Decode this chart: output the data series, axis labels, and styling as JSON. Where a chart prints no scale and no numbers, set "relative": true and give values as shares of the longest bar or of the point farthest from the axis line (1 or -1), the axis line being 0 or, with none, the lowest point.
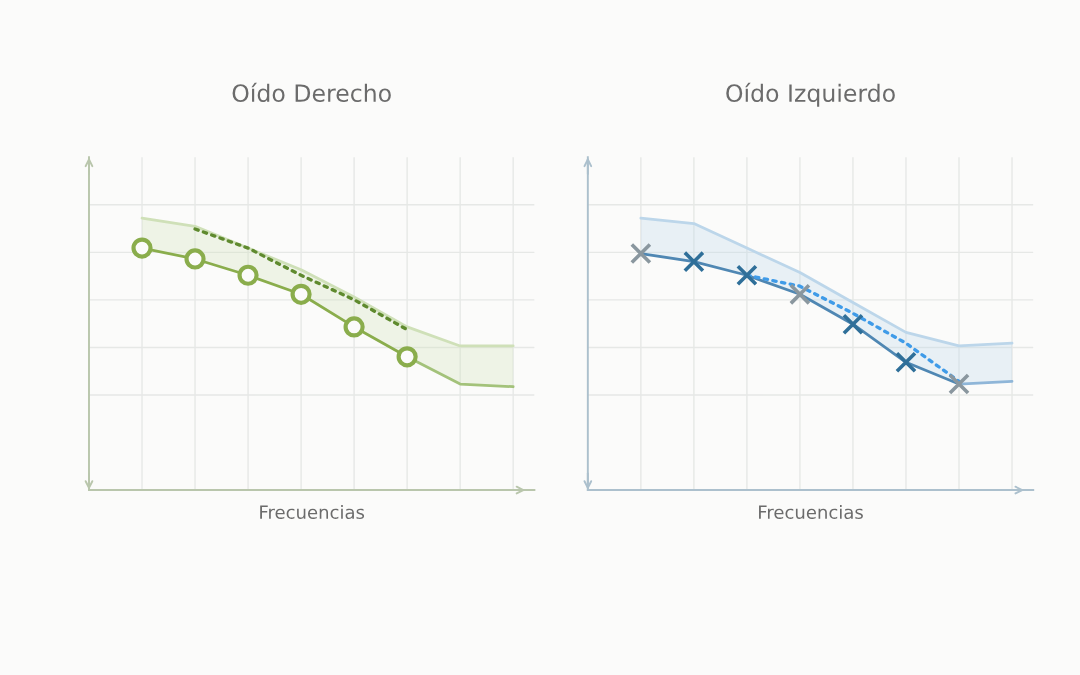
{
  "chart_data": [
    {
      "type": "line",
      "title": "Oído Derecho",
      "xlabel": "Frecuencias",
      "categories": [
        null,
        null,
        null,
        null,
        null,
        null,
        null,
        null
      ],
      "relative": true,
      "grid": true,
      "series": [
        {
          "type": "line",
          "color": "#cfe0b8",
          "marker": "none",
          "line_style": "solid",
          "values": [
            1.0,
            0.97,
            0.89,
            0.81,
            0.71,
            0.6,
            0.53,
            0.53
          ],
          "lower": [
            0.89,
            0.85,
            0.79,
            0.72,
            0.6,
            0.49,
            0.39,
            0.38
          ],
          "upper": [
            1.0,
            0.97,
            0.89,
            0.81,
            0.71,
            0.6,
            0.53,
            0.53
          ]
        },
        {
          "type": "line",
          "color": "#8aad4c",
          "marker": "circle",
          "line_style": "solid",
          "values": [
            0.89,
            0.85,
            0.79,
            0.72,
            0.6,
            0.49,
            null,
            null
          ]
        },
        {
          "type": "line",
          "color": "#a3c27a",
          "marker": "none",
          "line_style": "solid",
          "values": [
            null,
            null,
            null,
            null,
            null,
            0.49,
            0.39,
            0.38
          ]
        },
        {
          "type": "line",
          "color": "#5f8a2e",
          "marker": "none",
          "line_style": "dotted",
          "values": [
            null,
            0.96,
            0.89,
            0.79,
            0.7,
            0.59,
            null,
            null
          ]
        }
      ]
    },
    {
      "type": "line",
      "title": "Oído Izquierdo",
      "xlabel": "Frecuencias",
      "categories": [
        null,
        null,
        null,
        null,
        null,
        null,
        null,
        null
      ],
      "relative": true,
      "grid": true,
      "series": [
        {
          "type": "line",
          "color": "#bcd6ea",
          "marker": "none",
          "line_style": "solid",
          "values": [
            1.0,
            0.98,
            0.89,
            0.8,
            0.69,
            0.58,
            0.53,
            0.54
          ],
          "lower": [
            0.87,
            0.84,
            0.79,
            0.72,
            0.61,
            0.47,
            0.39,
            0.4
          ],
          "upper": [
            1.0,
            0.98,
            0.89,
            0.8,
            0.69,
            0.58,
            0.53,
            0.54
          ]
        },
        {
          "type": "line",
          "color": "#4f87b3",
          "marker": "cross",
          "line_style": "solid",
          "colors": [
            "#8a979f",
            "#2f6f99",
            "#2f6f99",
            "#8a979f",
            "#2f6f99",
            "#2f6f99",
            "#8a979f",
            "#8a979f"
          ],
          "values": [
            0.87,
            0.84,
            0.79,
            0.72,
            0.61,
            0.47,
            0.39,
            null
          ]
        },
        {
          "type": "line",
          "color": "#8fb6d8",
          "marker": "none",
          "line_style": "solid",
          "values": [
            null,
            null,
            null,
            null,
            null,
            null,
            0.39,
            0.4
          ]
        },
        {
          "type": "line",
          "color": "#3f9be8",
          "marker": "none",
          "line_style": "dotted",
          "values": [
            null,
            null,
            0.79,
            0.75,
            0.65,
            0.54,
            0.4,
            null
          ]
        }
      ]
    }
  ]
}
